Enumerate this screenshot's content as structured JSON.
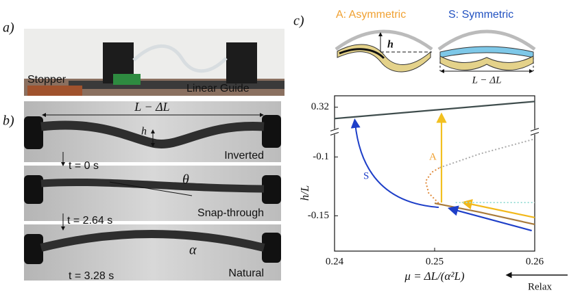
{
  "panel_a": {
    "label": "a)",
    "stopper": "Stopper",
    "linear_guide": "Linear Guide"
  },
  "panel_b": {
    "label": "b)",
    "span": "L − ΔL",
    "h": "h",
    "frames": [
      {
        "state": "Inverted",
        "time": "t = 0 s"
      },
      {
        "state": "Snap-through",
        "time": "t = 2.64 s",
        "angle": "θ"
      },
      {
        "state": "Natural",
        "time": "t = 3.28 s",
        "angle": "α"
      }
    ]
  },
  "panel_c": {
    "label": "c)",
    "asymmetric": "A: Asymmetric",
    "symmetric": "S: Symmetric",
    "h": "h",
    "span": "L − ΔL"
  },
  "chart_data": {
    "type": "line",
    "xlabel": "μ = ΔL/(α²L)",
    "ylabel": "h/L",
    "xlim": [
      0.24,
      0.26
    ],
    "xticks": [
      0.24,
      0.25,
      0.26
    ],
    "ylim": [
      -0.18,
      0.33
    ],
    "ybreak": [
      -0.08,
      0.3
    ],
    "yticks": [
      -0.15,
      -0.1,
      0.32
    ],
    "annotations": [
      "S",
      "A",
      "Relax"
    ],
    "series": [
      {
        "color": "#3e4c4c",
        "x": [
          0.24,
          0.26
        ],
        "values": [
          0.31,
          0.325
        ]
      },
      {
        "color": "#a87a3a",
        "x": [
          0.25,
          0.2545,
          0.26
        ],
        "values": [
          -0.1393,
          -0.1469,
          -0.1573
        ]
      },
      {
        "color": "#f2b81a",
        "x": [
          0.2532,
          0.26
        ],
        "values": [
          -0.1393,
          -0.1515
        ],
        "arrow": "start"
      },
      {
        "color": "#1e3fc8",
        "x": [
          0.2518,
          0.2597
        ],
        "values": [
          -0.1445,
          -0.1626
        ],
        "arrow": "start"
      },
      {
        "color": "#e08a3a",
        "dash": true,
        "x": [
          0.2504,
          0.2494,
          0.2491,
          0.2497,
          0.2505
        ],
        "values": [
          -0.1393,
          -0.1306,
          -0.1207,
          -0.1131,
          -0.1091
        ]
      },
      {
        "color": "#aaaaaa",
        "dash": true,
        "x": [
          0.2505,
          0.2545,
          0.26
        ],
        "values": [
          -0.1091,
          -0.0974,
          -0.0847
        ]
      },
      {
        "color": "#9fe0d8",
        "dash": true,
        "x": [
          0.2521,
          0.26
        ],
        "values": [
          -0.1387,
          -0.1387
        ]
      }
    ]
  }
}
